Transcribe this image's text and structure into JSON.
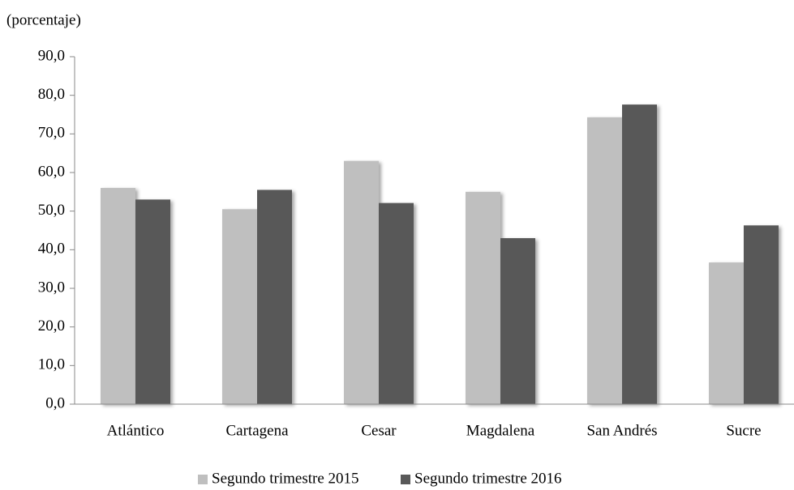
{
  "chart_data": {
    "type": "bar",
    "subtitle": "(porcentaje)",
    "categories": [
      "Atlántico",
      "Cartagena",
      "Cesar",
      "Magdalena",
      "San Andrés",
      "Sucre"
    ],
    "series": [
      {
        "name": "Segundo trimestre 2015",
        "color": "#bfbfbf",
        "values": [
          56.0,
          50.5,
          63.0,
          55.0,
          74.3,
          36.7
        ]
      },
      {
        "name": "Segundo trimestre 2016",
        "color": "#595959",
        "values": [
          53.0,
          55.5,
          52.1,
          43.0,
          77.6,
          46.3
        ]
      }
    ],
    "ylim": [
      0,
      90
    ],
    "yticks": [
      {
        "value": 0,
        "label": "0,0"
      },
      {
        "value": 10,
        "label": "10,0"
      },
      {
        "value": 20,
        "label": "20,0"
      },
      {
        "value": 30,
        "label": "30,0"
      },
      {
        "value": 40,
        "label": "40,0"
      },
      {
        "value": 50,
        "label": "50,0"
      },
      {
        "value": 60,
        "label": "60,0"
      },
      {
        "value": 70,
        "label": "70,0"
      },
      {
        "value": 80,
        "label": "80,0"
      },
      {
        "value": 90,
        "label": "90,0"
      }
    ],
    "legend": "bottom"
  }
}
